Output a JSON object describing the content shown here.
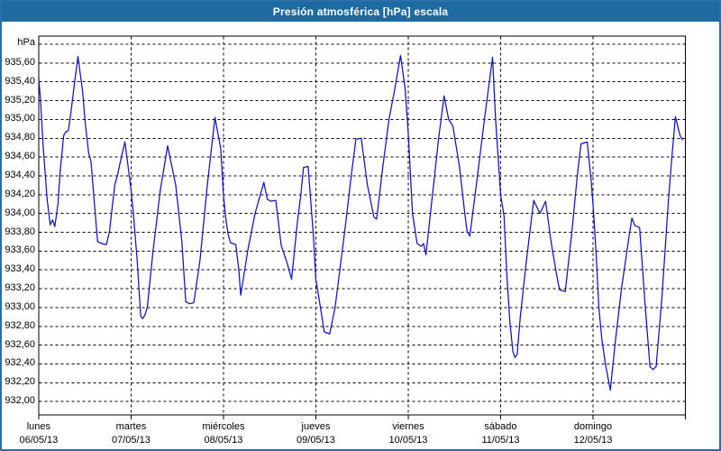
{
  "window": {
    "title": "Presión atmosférica [hPa] escala"
  },
  "colors": {
    "titlebar_bg": "#1E6BA3",
    "titlebar_text": "#FFFFFF",
    "window_border": "#2B6FA9",
    "plot_border": "#000000",
    "gridline": "#000000",
    "line": "#1111BE",
    "label_text": "#000000",
    "background": "#FFFFFF"
  },
  "chart_data": {
    "type": "line",
    "title": "Presión atmosférica [hPa] escala",
    "y_unit_label": "hPa",
    "decimal_separator": ",",
    "grid": "dashed",
    "legend": "none",
    "ylim": [
      931.86,
      935.89
    ],
    "y_gridline_values": [
      935.8,
      935.6,
      935.4,
      935.2,
      935.0,
      934.8,
      934.6,
      934.4,
      934.2,
      934.0,
      933.8,
      933.6,
      933.4,
      933.2,
      933.0,
      932.8,
      932.6,
      932.4,
      932.2,
      932.0
    ],
    "y_tick_labels": [
      "935,60",
      "935,40",
      "935,20",
      "935,00",
      "934,80",
      "934,60",
      "934,40",
      "934,20",
      "934,00",
      "933,80",
      "933,60",
      "933,40",
      "933,20",
      "933,00",
      "932,80",
      "932,60",
      "932,40",
      "932,20",
      "932,00"
    ],
    "y_tick_values": [
      935.6,
      935.4,
      935.2,
      935.0,
      934.8,
      934.6,
      934.4,
      934.2,
      934.0,
      933.8,
      933.6,
      933.4,
      933.2,
      933.0,
      932.8,
      932.6,
      932.4,
      932.2,
      932.0
    ],
    "x_days": [
      {
        "name": "lunes",
        "date": "06/05/13"
      },
      {
        "name": "martes",
        "date": "07/05/13"
      },
      {
        "name": "miércoles",
        "date": "08/05/13"
      },
      {
        "name": "jueves",
        "date": "09/05/13"
      },
      {
        "name": "viernes",
        "date": "10/05/13"
      },
      {
        "name": "sábado",
        "date": "11/05/13"
      },
      {
        "name": "domingo",
        "date": "12/05/13"
      }
    ],
    "x_total_hours": 168,
    "series": [
      {
        "name": "Presión atmosférica [hPa]",
        "color": "#1111BE",
        "points_t_hours_value_hpa": [
          [
            0,
            935.45
          ],
          [
            0.5,
            935.2
          ],
          [
            1.2,
            934.7
          ],
          [
            2.2,
            934.15
          ],
          [
            3,
            933.88
          ],
          [
            3.6,
            933.93
          ],
          [
            4.2,
            933.86
          ],
          [
            5,
            934.1
          ],
          [
            5.6,
            934.45
          ],
          [
            6.5,
            934.83
          ],
          [
            7.1,
            934.87
          ],
          [
            7.7,
            934.88
          ],
          [
            8.3,
            935.05
          ],
          [
            9.2,
            935.35
          ],
          [
            10.2,
            935.67
          ],
          [
            11.4,
            935.3
          ],
          [
            12.1,
            934.96
          ],
          [
            13,
            934.64
          ],
          [
            13.6,
            934.55
          ],
          [
            14.5,
            934.1
          ],
          [
            15.3,
            933.7
          ],
          [
            16.4,
            933.68
          ],
          [
            17.6,
            933.67
          ],
          [
            18.4,
            933.81
          ],
          [
            19.2,
            934.1
          ],
          [
            19.8,
            934.31
          ],
          [
            20.5,
            934.41
          ],
          [
            21.2,
            934.55
          ],
          [
            22.4,
            934.76
          ],
          [
            23.3,
            934.48
          ],
          [
            24,
            934.25
          ],
          [
            24.6,
            934.0
          ],
          [
            25.6,
            933.5
          ],
          [
            26.5,
            932.91
          ],
          [
            27,
            932.88
          ],
          [
            27.6,
            932.92
          ],
          [
            28.2,
            933.0
          ],
          [
            29.7,
            933.6
          ],
          [
            31.6,
            934.25
          ],
          [
            33.5,
            934.72
          ],
          [
            35.6,
            934.3
          ],
          [
            37.2,
            933.7
          ],
          [
            38.2,
            933.06
          ],
          [
            39.2,
            933.04
          ],
          [
            40.3,
            933.05
          ],
          [
            41.9,
            933.5
          ],
          [
            43.8,
            934.3
          ],
          [
            45.8,
            935.02
          ],
          [
            47.3,
            934.69
          ],
          [
            48,
            934.2
          ],
          [
            48.6,
            933.95
          ],
          [
            49.2,
            933.78
          ],
          [
            49.8,
            933.69
          ],
          [
            51.2,
            933.67
          ],
          [
            52,
            933.4
          ],
          [
            52.5,
            933.13
          ],
          [
            54.3,
            933.6
          ],
          [
            56.2,
            934.0
          ],
          [
            58.5,
            934.33
          ],
          [
            59.4,
            934.15
          ],
          [
            60.3,
            934.13
          ],
          [
            61.6,
            934.14
          ],
          [
            63,
            933.66
          ],
          [
            64.5,
            933.48
          ],
          [
            65.7,
            933.3
          ],
          [
            67.2,
            933.9
          ],
          [
            68.1,
            934.2
          ],
          [
            68.8,
            934.49
          ],
          [
            70,
            934.5
          ],
          [
            71.4,
            933.74
          ],
          [
            72,
            933.3
          ],
          [
            72.8,
            933.1
          ],
          [
            74.2,
            932.74
          ],
          [
            75.6,
            932.72
          ],
          [
            77,
            933.0
          ],
          [
            79.6,
            933.84
          ],
          [
            81.2,
            934.4
          ],
          [
            82.4,
            934.79
          ],
          [
            83.8,
            934.8
          ],
          [
            85.4,
            934.3
          ],
          [
            87.1,
            933.96
          ],
          [
            87.8,
            933.94
          ],
          [
            89.4,
            934.5
          ],
          [
            91,
            935.0
          ],
          [
            92.4,
            935.3
          ],
          [
            94,
            935.68
          ],
          [
            95.2,
            935.33
          ],
          [
            96,
            934.85
          ],
          [
            97.1,
            934.0
          ],
          [
            98.3,
            933.68
          ],
          [
            99.4,
            933.65
          ],
          [
            100,
            933.68
          ],
          [
            100.6,
            933.56
          ],
          [
            102.3,
            934.2
          ],
          [
            103.9,
            934.8
          ],
          [
            105.3,
            935.25
          ],
          [
            106.5,
            935.0
          ],
          [
            107.6,
            934.93
          ],
          [
            109.3,
            934.5
          ],
          [
            110.7,
            934.0
          ],
          [
            111.3,
            933.81
          ],
          [
            112,
            933.76
          ],
          [
            114,
            934.4
          ],
          [
            115.8,
            935.0
          ],
          [
            117.9,
            935.66
          ],
          [
            118.7,
            935.0
          ],
          [
            119.4,
            934.57
          ],
          [
            120,
            934.2
          ],
          [
            120.9,
            933.97
          ],
          [
            121.6,
            933.36
          ],
          [
            122.4,
            932.85
          ],
          [
            123.2,
            932.53
          ],
          [
            123.7,
            932.47
          ],
          [
            124.3,
            932.5
          ],
          [
            125.1,
            932.9
          ],
          [
            126.7,
            933.5
          ],
          [
            128.6,
            934.14
          ],
          [
            130.2,
            934.0
          ],
          [
            131.7,
            934.13
          ],
          [
            133.1,
            933.7
          ],
          [
            134.5,
            933.36
          ],
          [
            135.3,
            933.19
          ],
          [
            136.8,
            933.17
          ],
          [
            138.5,
            933.8
          ],
          [
            139.9,
            934.4
          ],
          [
            140.9,
            934.74
          ],
          [
            142.5,
            934.76
          ],
          [
            143.5,
            934.35
          ],
          [
            144,
            934.1
          ],
          [
            144.8,
            933.58
          ],
          [
            145.5,
            933.01
          ],
          [
            146.3,
            932.66
          ],
          [
            147.2,
            932.4
          ],
          [
            148.5,
            932.12
          ],
          [
            149.7,
            932.6
          ],
          [
            151.4,
            933.2
          ],
          [
            152.8,
            933.6
          ],
          [
            154.1,
            933.95
          ],
          [
            154.9,
            933.87
          ],
          [
            156.1,
            933.85
          ],
          [
            157.6,
            932.99
          ],
          [
            158.8,
            932.37
          ],
          [
            159.6,
            932.34
          ],
          [
            160.4,
            932.37
          ],
          [
            161.9,
            933.1
          ],
          [
            163.5,
            934.09
          ],
          [
            164.3,
            934.51
          ],
          [
            165.4,
            935.03
          ],
          [
            166.6,
            934.83
          ],
          [
            167.3,
            934.78
          ]
        ]
      }
    ]
  }
}
